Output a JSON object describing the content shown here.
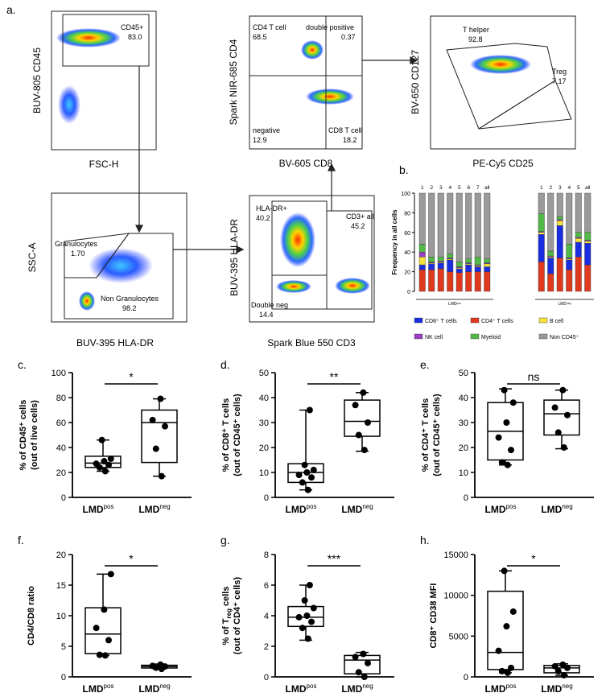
{
  "panel_labels": {
    "a": "a.",
    "b": "b.",
    "c": "c.",
    "d": "d.",
    "e": "e.",
    "f": "f.",
    "g": "g.",
    "h": "h."
  },
  "flow": {
    "p1": {
      "y": "BUV-805 CD45",
      "x": "FSC-H",
      "gate": "CD45+",
      "gate_val": "83.0"
    },
    "p2": {
      "y": "Spark NIR-685 CD4",
      "x": "BV-605 CD8",
      "q1": "CD4 T cell",
      "q1v": "68.5",
      "q2": "double positive",
      "q2v": "0.37",
      "q3": "negative",
      "q3v": "12.9",
      "q4": "CD8 T cell",
      "q4v": "18.2"
    },
    "p3": {
      "y": "BV-650 CD127",
      "x": "PE-Cy5 CD25",
      "g1": "T helper",
      "g1v": "92.8",
      "g2": "Treg",
      "g2v": "7.17"
    },
    "p4": {
      "y": "SSC-A",
      "x": "BUV-395 HLA-DR",
      "g1": "Granulocytes",
      "g1v": "1.70",
      "g2": "Non Granulocytes",
      "g2v": "98.2"
    },
    "p5": {
      "y": "BUV-395 HLA-DR",
      "x": "Spark Blue 550 CD3",
      "g1": "HLA-DR+",
      "g1v": "40.2",
      "g2": "CD3+ all",
      "g2v": "45.2",
      "g3": "Double neg",
      "g3v": "14.4"
    }
  },
  "colors": {
    "cd8": "#1a2ee0",
    "cd4": "#e03a1e",
    "bcell": "#f5e23a",
    "nk": "#9b3fc6",
    "myeloid": "#52b848",
    "nonCD45": "#9a9a9a"
  },
  "chart_data": [
    {
      "type": "bar",
      "panel": "b",
      "stacked": true,
      "ylabel": "Frequency in all cells",
      "ylim": [
        0,
        100
      ],
      "yticks": [
        0,
        20,
        40,
        60,
        80,
        100
      ],
      "groups": [
        {
          "name": "LMD^pos",
          "label": "LMDᵖᵒˢ",
          "categories": [
            "1",
            "2",
            "3",
            "4",
            "5",
            "6",
            "7",
            "all"
          ]
        },
        {
          "name": "LMD^neg",
          "label": "LMDⁿᵉᵍ",
          "categories": [
            "1",
            "2",
            "3",
            "4",
            "5",
            "all"
          ]
        }
      ],
      "legend": [
        "CD8⁺ T cells",
        "CD4⁺ T cells",
        "B cell",
        "NK cell",
        "Myeloid",
        "Non CD45⁺"
      ],
      "series_order": [
        "cd4",
        "cd8",
        "bcell",
        "nk",
        "myeloid",
        "nonCD45"
      ],
      "bars": [
        {
          "cd4": 22,
          "cd8": 5,
          "bcell": 8,
          "nk": 5,
          "myeloid": 8,
          "nonCD45": 52
        },
        {
          "cd4": 22,
          "cd8": 6,
          "bcell": 1,
          "nk": 1,
          "myeloid": 5,
          "nonCD45": 65
        },
        {
          "cd4": 23,
          "cd8": 6,
          "bcell": 1,
          "nk": 1,
          "myeloid": 4,
          "nonCD45": 65
        },
        {
          "cd4": 20,
          "cd8": 12,
          "bcell": 1,
          "nk": 1,
          "myeloid": 4,
          "nonCD45": 62
        },
        {
          "cd4": 19,
          "cd8": 4,
          "bcell": 1,
          "nk": 1,
          "myeloid": 5,
          "nonCD45": 70
        },
        {
          "cd4": 20,
          "cd8": 7,
          "bcell": 1,
          "nk": 1,
          "myeloid": 4,
          "nonCD45": 67
        },
        {
          "cd4": 20,
          "cd8": 5,
          "bcell": 1,
          "nk": 1,
          "myeloid": 8,
          "nonCD45": 65
        },
        {
          "cd4": 20,
          "cd8": 5,
          "bcell": 3,
          "nk": 1,
          "myeloid": 4,
          "nonCD45": 67
        },
        {
          "cd4": 30,
          "cd8": 28,
          "bcell": 2,
          "nk": 1,
          "myeloid": 18,
          "nonCD45": 21
        },
        {
          "cd4": 18,
          "cd8": 16,
          "bcell": 1,
          "nk": 1,
          "myeloid": 5,
          "nonCD45": 59
        },
        {
          "cd4": 34,
          "cd8": 33,
          "bcell": 5,
          "nk": 1,
          "myeloid": 3,
          "nonCD45": 24
        },
        {
          "cd4": 22,
          "cd8": 10,
          "bcell": 1,
          "nk": 1,
          "myeloid": 14,
          "nonCD45": 52
        },
        {
          "cd4": 35,
          "cd8": 15,
          "bcell": 4,
          "nk": 1,
          "myeloid": 5,
          "nonCD45": 40
        },
        {
          "cd4": 27,
          "cd8": 22,
          "bcell": 2,
          "nk": 1,
          "myeloid": 8,
          "nonCD45": 40
        }
      ]
    },
    {
      "type": "box",
      "panel": "c",
      "ylabel_l1": "% of CD45⁺ cells",
      "ylabel_l2": "(out of live cells)",
      "ylim": [
        0,
        100
      ],
      "yticks": [
        0,
        20,
        40,
        60,
        80,
        100
      ],
      "categories": [
        "LMD^pos",
        "LMD^neg"
      ],
      "sig": "*",
      "pos": [
        21,
        24,
        26,
        27,
        29,
        31,
        46
      ],
      "neg": [
        17,
        39,
        57,
        62,
        79
      ],
      "box_pos": {
        "min": 21,
        "q1": 24,
        "med": 27.5,
        "q3": 33,
        "max": 46
      },
      "box_neg": {
        "min": 17,
        "q1": 28,
        "med": 60,
        "q3": 70,
        "max": 79
      }
    },
    {
      "type": "box",
      "panel": "d",
      "ylabel_l1": "% of CD8⁺ T cells",
      "ylabel_l2": "(out of CD45⁺ cells)",
      "ylim": [
        0,
        50
      ],
      "yticks": [
        0,
        10,
        20,
        30,
        40,
        50
      ],
      "categories": [
        "LMD^pos",
        "LMD^neg"
      ],
      "sig": "**",
      "pos": [
        3,
        6,
        8,
        9,
        10,
        11,
        13,
        35
      ],
      "neg": [
        19,
        25,
        30,
        37,
        42
      ],
      "box_pos": {
        "min": 3,
        "q1": 6,
        "med": 10,
        "q3": 13.5,
        "max": 35
      },
      "box_neg": {
        "min": 18.5,
        "q1": 24.5,
        "med": 30.5,
        "q3": 39,
        "max": 42
      }
    },
    {
      "type": "box",
      "panel": "e",
      "ylabel_l1": "% of CD4⁺ T cells",
      "ylabel_l2": "(out of CD45⁺ cells)",
      "ylim": [
        0,
        50
      ],
      "yticks": [
        0,
        10,
        20,
        30,
        40,
        50
      ],
      "categories": [
        "LMD^pos",
        "LMD^neg"
      ],
      "sig": "ns",
      "pos": [
        13,
        14,
        19,
        24,
        30,
        38,
        43
      ],
      "neg": [
        20,
        26,
        33,
        36,
        43
      ],
      "box_pos": {
        "min": 13,
        "q1": 15,
        "med": 26.5,
        "q3": 38,
        "max": 43.5
      },
      "box_neg": {
        "min": 19.5,
        "q1": 25,
        "med": 33.5,
        "q3": 39,
        "max": 43
      }
    },
    {
      "type": "box",
      "panel": "f",
      "ylabel_l1": "CD4/CD8 ratio",
      "ylabel_l2": "",
      "ylim": [
        0,
        20
      ],
      "yticks": [
        0,
        5,
        10,
        15,
        20
      ],
      "categories": [
        "LMD^pos",
        "LMD^neg"
      ],
      "sig": "*",
      "pos": [
        3.5,
        3.6,
        6,
        8,
        11,
        16.8
      ],
      "neg": [
        1.3,
        1.5,
        1.7,
        1.8,
        2.0
      ],
      "box_pos": {
        "min": 3.5,
        "q1": 3.8,
        "med": 7,
        "q3": 11.3,
        "max": 16.8
      },
      "box_neg": {
        "min": 1.3,
        "q1": 1.45,
        "med": 1.7,
        "q3": 1.9,
        "max": 2.1
      }
    },
    {
      "type": "box",
      "panel": "g",
      "ylabel_l1": "% of T<sub>reg</sub> cells",
      "ylabel_l2": "(out of CD4⁺ cells)",
      "ylim": [
        0,
        8
      ],
      "yticks": [
        0,
        2,
        4,
        6,
        8
      ],
      "categories": [
        "LMD^pos",
        "LMD^neg"
      ],
      "sig": "***",
      "pos": [
        2.5,
        3.2,
        3.6,
        3.9,
        4.0,
        4.5,
        5.0,
        6.0
      ],
      "neg": [
        0,
        0.3,
        0.9,
        1.3,
        1.5
      ],
      "box_pos": {
        "min": 2.4,
        "q1": 3.3,
        "med": 3.9,
        "q3": 4.6,
        "max": 6.0
      },
      "box_neg": {
        "min": 0,
        "q1": 0.2,
        "med": 1.1,
        "q3": 1.4,
        "max": 1.6
      }
    },
    {
      "type": "box",
      "panel": "h",
      "ylabel_l1": "CD8⁺ CD38 MFI",
      "ylabel_l2": "",
      "ylim": [
        0,
        15000
      ],
      "yticks": [
        0,
        5000,
        10000,
        15000
      ],
      "categories": [
        "LMD^pos",
        "LMD^neg"
      ],
      "sig": "*",
      "pos": [
        500,
        700,
        1100,
        3200,
        6200,
        8000,
        13000
      ],
      "neg": [
        200,
        700,
        1100,
        1300,
        1500
      ],
      "box_pos": {
        "min": 500,
        "q1": 900,
        "med": 3000,
        "q3": 10500,
        "max": 13000
      },
      "box_neg": {
        "min": 200,
        "q1": 500,
        "med": 1100,
        "q3": 1400,
        "max": 1600
      }
    }
  ],
  "xlabels": {
    "pos_main": "LMD",
    "pos_sup": "pos",
    "neg_main": "LMD",
    "neg_sup": "neg"
  }
}
